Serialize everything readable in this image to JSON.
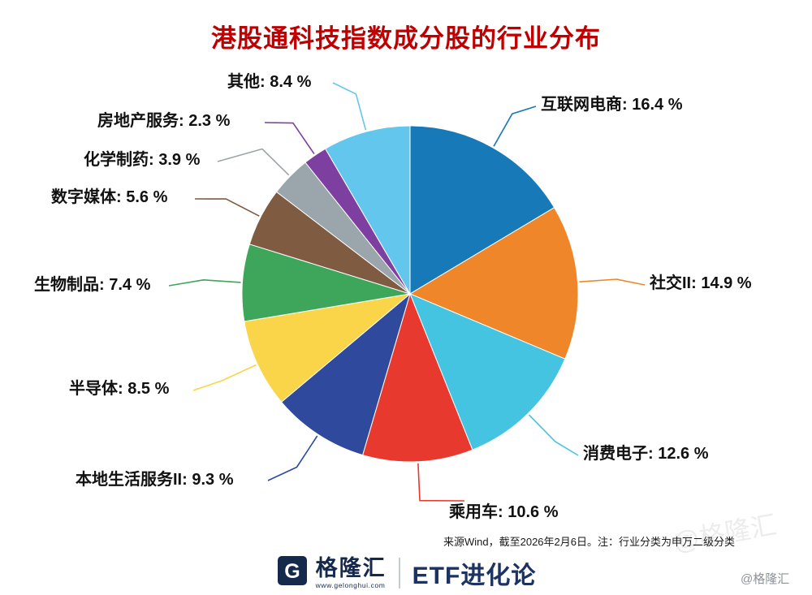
{
  "title": "港股通科技指数成分股的行业分布",
  "colors": {
    "title": "#c00000",
    "brand_navy": "#15294d"
  },
  "chart_data": {
    "type": "pie",
    "title": "港股通科技指数成分股的行业分布",
    "unit": "%",
    "start_angle_deg": 0,
    "direction": "clockwise",
    "legend_position": "outside-labels-with-leader-lines",
    "slices": [
      {
        "label": "互联网电商",
        "value": 16.4,
        "color": "#1879b8"
      },
      {
        "label": "社交II",
        "value": 14.9,
        "color": "#f0862a"
      },
      {
        "label": "消费电子",
        "value": 12.6,
        "color": "#45c4e1"
      },
      {
        "label": "乘用车",
        "value": 10.6,
        "color": "#e8392f"
      },
      {
        "label": "本地生活服务II",
        "value": 9.3,
        "color": "#2f4a9d"
      },
      {
        "label": "半导体",
        "value": 8.5,
        "color": "#fad449"
      },
      {
        "label": "生物制品",
        "value": 7.4,
        "color": "#3ea65b"
      },
      {
        "label": "数字媒体",
        "value": 5.6,
        "color": "#7f5b42"
      },
      {
        "label": "化学制药",
        "value": 3.9,
        "color": "#9ba6ac"
      },
      {
        "label": "房地产服务",
        "value": 2.3,
        "color": "#7d3fa0"
      },
      {
        "label": "其他",
        "value": 8.4,
        "color": "#63c6ec"
      }
    ]
  },
  "footer": {
    "source_note": "来源Wind，截至2026年2月6日。注：行业分类为申万二级分类",
    "brand_name": "格隆汇",
    "brand_url": "www.gelonghui.com",
    "brand_channel": "ETF进化论",
    "brand_logo_letter": "G",
    "watermark_handle": "@格隆汇"
  }
}
